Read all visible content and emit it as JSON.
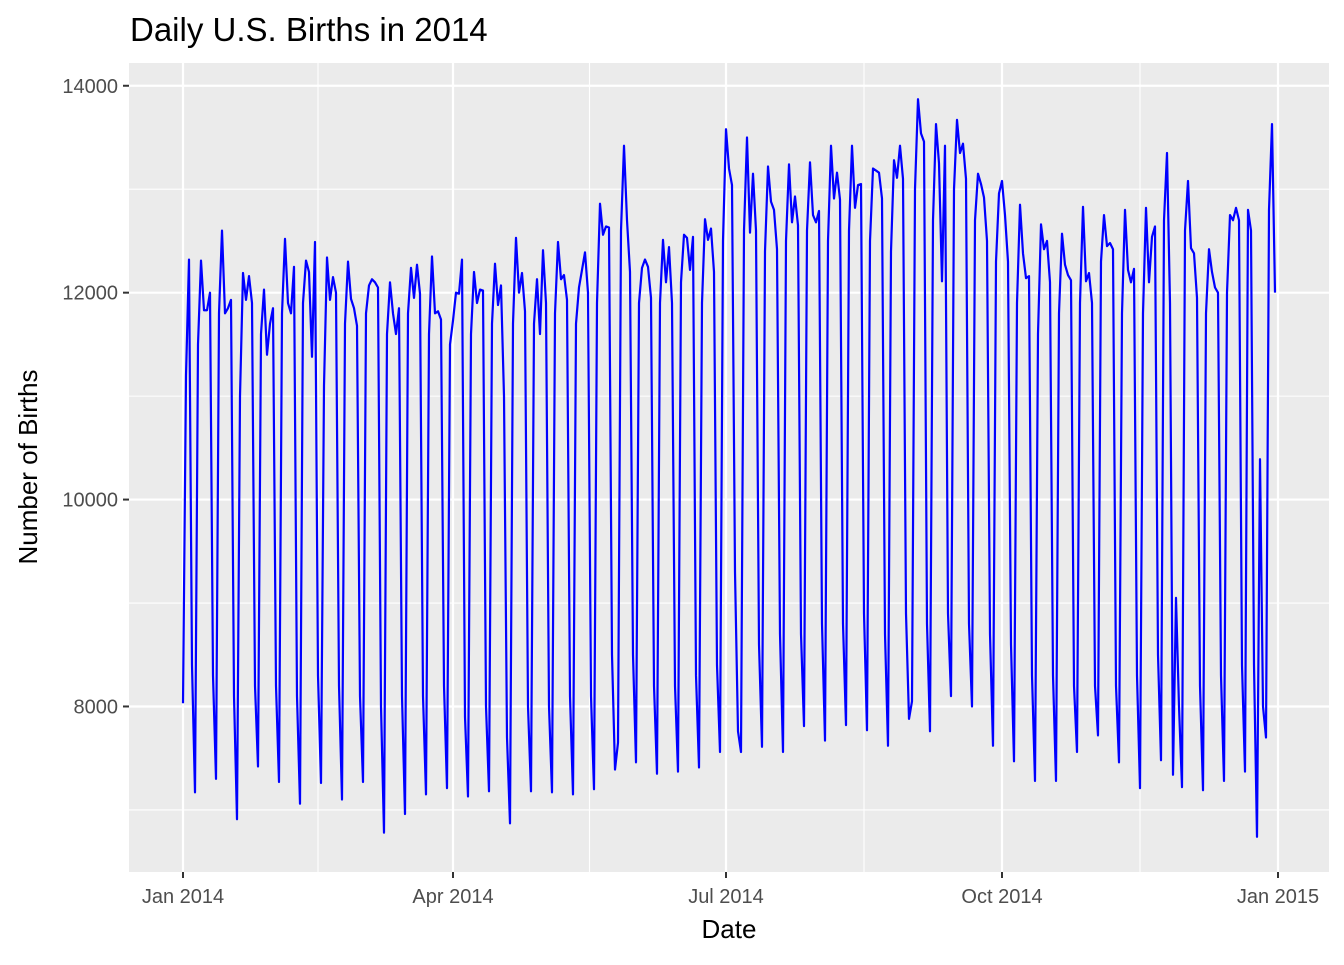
{
  "chart_data": {
    "type": "line",
    "title": "Daily U.S. Births in 2014",
    "xlabel": "Date",
    "ylabel": "Number of Births",
    "start_date": "2014-01-01",
    "x_tick_labels": [
      {
        "label": "Jan 2014",
        "day": 0
      },
      {
        "label": "Apr 2014",
        "day": 90
      },
      {
        "label": "Jul 2014",
        "day": 181
      },
      {
        "label": "Oct 2014",
        "day": 273
      },
      {
        "label": "Jan 2015",
        "day": 365
      }
    ],
    "y_ticks": [
      8000,
      10000,
      12000,
      14000
    ],
    "ylim": [
      6400,
      14220
    ],
    "xlim_days": [
      -18,
      382
    ],
    "grid": true,
    "line_color": "#0000FF",
    "panel_color": "#EBEBEB",
    "values": [
      8031,
      11200,
      12320,
      8400,
      7170,
      11500,
      12310,
      11830,
      11830,
      12000,
      8300,
      7300,
      11800,
      12600,
      11800,
      11850,
      11930,
      8100,
      6910,
      11000,
      12190,
      11930,
      12160,
      11900,
      8200,
      7420,
      11600,
      12030,
      11400,
      11700,
      11850,
      8200,
      7270,
      11800,
      12520,
      11900,
      11800,
      12250,
      8100,
      7060,
      11900,
      12310,
      12200,
      11380,
      12490,
      8300,
      7260,
      11100,
      12340,
      11930,
      12150,
      12000,
      8200,
      7100,
      11700,
      12300,
      11940,
      11850,
      11680,
      8100,
      7270,
      11800,
      12070,
      12130,
      12100,
      12050,
      8000,
      6780,
      11600,
      12100,
      11800,
      11600,
      11850,
      8100,
      6960,
      11800,
      12240,
      11950,
      12270,
      11990,
      8100,
      7150,
      11600,
      12350,
      11800,
      11820,
      11740,
      8200,
      7210,
      11500,
      11730,
      12000,
      11990,
      12320,
      7900,
      7130,
      11600,
      12200,
      11900,
      12030,
      12020,
      8000,
      7180,
      11700,
      12280,
      11880,
      12070,
      11000,
      7700,
      6870,
      11700,
      12530,
      12000,
      12190,
      11820,
      8000,
      7180,
      11700,
      12130,
      11600,
      12410,
      11900,
      8000,
      7170,
      11800,
      12490,
      12130,
      12170,
      11930,
      8100,
      7150,
      11700,
      12050,
      12220,
      12390,
      12000,
      8100,
      7200,
      11900,
      12860,
      12560,
      12640,
      12630,
      8500,
      7390,
      7650,
      12600,
      13420,
      12700,
      12200,
      8500,
      7460,
      11900,
      12240,
      12320,
      12250,
      11950,
      8200,
      7350,
      11900,
      12510,
      12100,
      12440,
      11900,
      8200,
      7370,
      12100,
      12560,
      12530,
      12220,
      12540,
      8300,
      7410,
      11900,
      12710,
      12510,
      12620,
      12200,
      8400,
      7560,
      12500,
      13580,
      13200,
      13040,
      9300,
      7760,
      7560,
      12600,
      13500,
      12580,
      13150,
      12600,
      8600,
      7610,
      12400,
      13220,
      12880,
      12800,
      12420,
      8700,
      7560,
      12500,
      13240,
      12680,
      12930,
      12650,
      8700,
      7810,
      12600,
      13260,
      12750,
      12680,
      12790,
      8800,
      7670,
      12500,
      13420,
      12910,
      13160,
      12900,
      8800,
      7820,
      12600,
      13420,
      12820,
      13040,
      13050,
      8900,
      7770,
      12500,
      13200,
      13180,
      13160,
      12910,
      8700,
      7620,
      12400,
      13280,
      13110,
      13420,
      13100,
      8900,
      7880,
      8050,
      13000,
      13870,
      13540,
      13460,
      8800,
      7760,
      12700,
      13630,
      13250,
      12110,
      13420,
      8900,
      8100,
      13000,
      13670,
      13350,
      13440,
      13100,
      8800,
      8000,
      12700,
      13150,
      13050,
      12920,
      12500,
      8700,
      7620,
      12300,
      12960,
      13080,
      12750,
      12300,
      8600,
      7470,
      11900,
      12850,
      12380,
      12140,
      12160,
      8300,
      7280,
      11600,
      12660,
      12420,
      12500,
      12100,
      8300,
      7280,
      11800,
      12570,
      12270,
      12170,
      12120,
      8200,
      7560,
      11900,
      12830,
      12110,
      12190,
      11900,
      8200,
      7720,
      12300,
      12750,
      12450,
      12480,
      12420,
      8200,
      7460,
      11800,
      12800,
      12220,
      12100,
      12230,
      8300,
      7210,
      11800,
      12820,
      12100,
      12540,
      12640,
      8500,
      7480,
      12700,
      13350,
      11900,
      7340,
      9050,
      8000,
      7220,
      12600,
      13080,
      12430,
      12380,
      11950,
      8200,
      7190,
      11800,
      12420,
      12200,
      12050,
      12000,
      8300,
      7280,
      12000,
      12750,
      12700,
      12820,
      12700,
      8400,
      7370,
      12800,
      12600,
      8400,
      6740,
      10390,
      8000,
      7700,
      12800,
      13630,
      12000
    ]
  }
}
